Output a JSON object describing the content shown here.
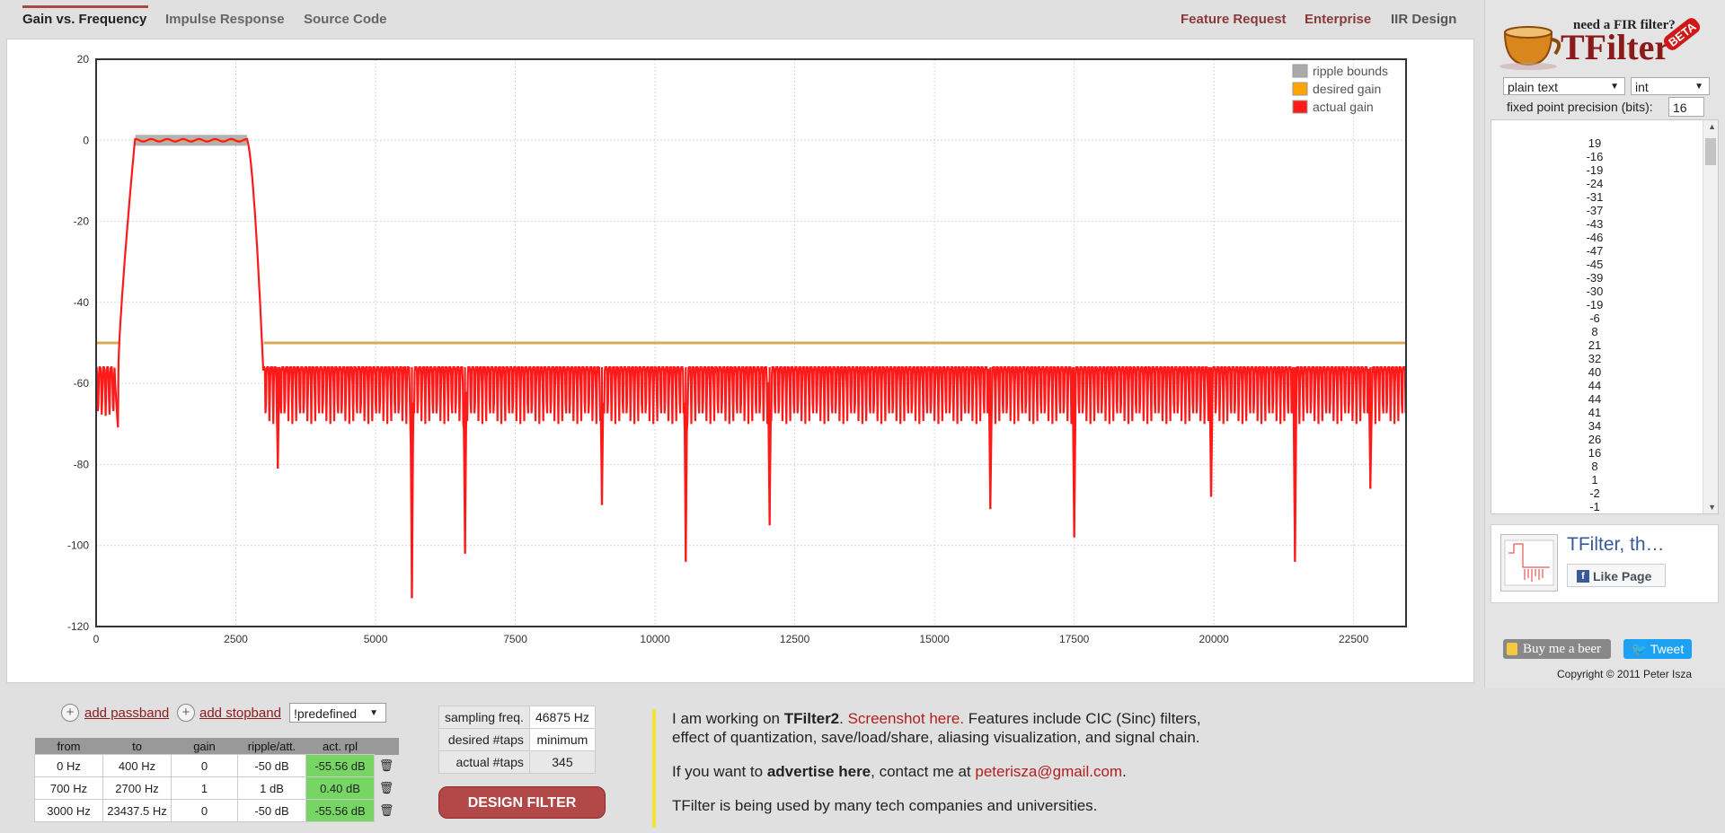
{
  "tabs": {
    "left": [
      "Gain vs. Frequency",
      "Impulse Response",
      "Source Code"
    ],
    "right": [
      "Feature Request",
      "Enterprise",
      "IIR Design"
    ],
    "active": "Gain vs. Frequency"
  },
  "brand": {
    "tagline": "need a FIR filter?",
    "name": "TFilter",
    "badge": "BETA"
  },
  "sidebar": {
    "format_select": "plain text",
    "type_select": "int",
    "precision_label": "fixed point precision (bits):",
    "precision_value": "16",
    "coefficients": [
      19,
      -16,
      -19,
      -24,
      -31,
      -37,
      -43,
      -46,
      -47,
      -45,
      -39,
      -30,
      -19,
      -6,
      8,
      21,
      32,
      40,
      44,
      44,
      41,
      34,
      26,
      16,
      8,
      1,
      -2,
      -1
    ],
    "fb_title": "TFilter, th…",
    "fb_like": "Like Page",
    "beer": "Buy me a beer",
    "tweet": "Tweet",
    "copyright": "Copyright © 2011 Peter Isza"
  },
  "chart_data": {
    "type": "line",
    "title": "",
    "xlabel": "",
    "ylabel": "",
    "xlim": [
      0,
      23437.5
    ],
    "ylim": [
      -120,
      20
    ],
    "x_ticks": [
      0,
      2500,
      5000,
      7500,
      10000,
      12500,
      15000,
      17500,
      20000,
      22500
    ],
    "y_ticks": [
      20,
      0,
      -20,
      -40,
      -60,
      -80,
      -100,
      -120
    ],
    "grid": true,
    "legend_position": "top-right",
    "legend": [
      "ripple bounds",
      "desired gain",
      "actual gain"
    ],
    "colors": {
      "ripple": "#aaaaaa",
      "desired": "#ffa500",
      "actual": "#ff1a1a"
    },
    "series": [
      {
        "name": "ripple bounds",
        "x": [
          0,
          400,
          700,
          2700,
          3000,
          23437.5
        ],
        "y_upper": [
          -50,
          -50,
          1,
          1,
          -50,
          -50
        ],
        "y_lower": [
          -50,
          -50,
          -1,
          -1,
          -50,
          -50
        ]
      },
      {
        "name": "desired gain",
        "x": [
          0,
          400,
          700,
          2700,
          3000,
          23437.5
        ],
        "y": [
          -50,
          -50,
          0,
          0,
          -50,
          -50
        ]
      },
      {
        "name": "actual gain",
        "passband": [
          700,
          2700
        ],
        "passband_level": 0,
        "stopband_level": -56,
        "deep_nulls": [
          {
            "x": 3250,
            "y": -81
          },
          {
            "x": 5650,
            "y": -113
          },
          {
            "x": 6600,
            "y": -102
          },
          {
            "x": 9050,
            "y": -90
          },
          {
            "x": 10550,
            "y": -104
          },
          {
            "x": 12050,
            "y": -95
          },
          {
            "x": 16000,
            "y": -91
          },
          {
            "x": 17500,
            "y": -98
          },
          {
            "x": 19950,
            "y": -88
          },
          {
            "x": 21450,
            "y": -104
          },
          {
            "x": 22800,
            "y": -86
          }
        ]
      }
    ]
  },
  "bottom": {
    "add_passband": "add passband",
    "add_stopband": "add stopband",
    "predefined": "!predefined",
    "band_headers": [
      "from",
      "to",
      "gain",
      "ripple/att.",
      "act. rpl"
    ],
    "bands": [
      {
        "from": "0 Hz",
        "to": "400 Hz",
        "gain": "0",
        "ripple": "-50 dB",
        "act": "-55.56 dB"
      },
      {
        "from": "700 Hz",
        "to": "2700 Hz",
        "gain": "1",
        "ripple": "1 dB",
        "act": "0.40 dB"
      },
      {
        "from": "3000 Hz",
        "to": "23437.5 Hz",
        "gain": "0",
        "ripple": "-50 dB",
        "act": "-55.56 dB"
      }
    ],
    "params": [
      {
        "label": "sampling freq.",
        "value": "46875 Hz"
      },
      {
        "label": "desired #taps",
        "value": "minimum"
      },
      {
        "label": "actual #taps",
        "value": "345"
      }
    ],
    "design_button": "DESIGN FILTER",
    "news": {
      "l1a": "I am working on ",
      "l1b": "TFilter2",
      "l1c": ". ",
      "l1d": "Screenshot here.",
      "l1e": " Features include CIC (Sinc) filters,",
      "l2": "effect of quantization, save/load/share, aliasing visualization, and signal chain.",
      "l3a": "If you want to ",
      "l3b": "advertise here",
      "l3c": ", contact me at ",
      "l3d": "peterisza@gmail.com",
      "l3e": ".",
      "l4": "TFilter is being used by many tech companies and universities."
    }
  }
}
